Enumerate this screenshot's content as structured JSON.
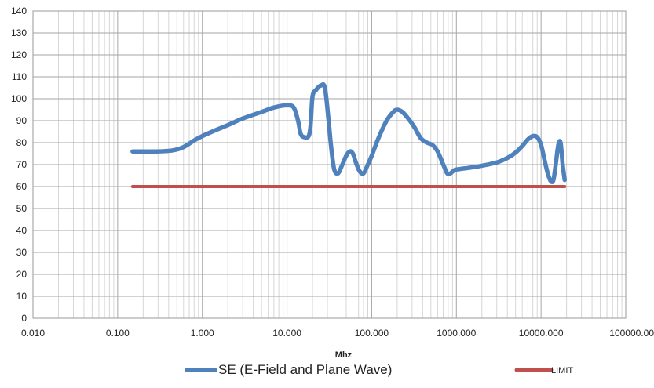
{
  "chart_data": {
    "type": "line",
    "title": "",
    "xlabel": "Mhz",
    "ylabel": "",
    "x_scale": "log",
    "xlim": [
      0.01,
      100000
    ],
    "ylim": [
      0,
      140
    ],
    "y_ticks": [
      0,
      10,
      20,
      30,
      40,
      50,
      60,
      70,
      80,
      90,
      100,
      110,
      120,
      130,
      140
    ],
    "y_tick_labels": [
      "0",
      "10",
      "20",
      "30",
      "40",
      "50",
      "60",
      "70",
      "80",
      "90",
      "100",
      "110",
      "120",
      "130",
      "140"
    ],
    "x_ticks": [
      0.01,
      0.1,
      1,
      10,
      100,
      1000,
      10000,
      100000
    ],
    "x_tick_labels": [
      "0.010",
      "0.100",
      "1.000",
      "10.000",
      "100.000",
      "1000.000",
      "10000.000",
      "100000.00"
    ],
    "grid": true,
    "legend_position": "bottom",
    "series": [
      {
        "name": "SE (E-Field and Plane Wave)",
        "color": "#4f81bd",
        "x": [
          0.15,
          0.2,
          0.3,
          0.45,
          0.6,
          0.8,
          1.0,
          1.5,
          2,
          3,
          5,
          7,
          10,
          12,
          13.5,
          14.5,
          16,
          18,
          19,
          20,
          22,
          25,
          28,
          31,
          33,
          36,
          40,
          45,
          50,
          55,
          60,
          65,
          72,
          80,
          90,
          100,
          120,
          150,
          180,
          200,
          230,
          270,
          320,
          380,
          450,
          520,
          600,
          700,
          780,
          850,
          950,
          1100,
          1400,
          2000,
          3000,
          4000,
          5000,
          6000,
          7000,
          8000,
          9000,
          10000,
          11000,
          12000,
          13000,
          14000,
          15000,
          16000,
          17000,
          18000,
          19000
        ],
        "y": [
          76,
          76,
          76,
          76.5,
          78,
          81,
          83,
          86,
          88,
          91,
          94,
          96,
          97,
          96,
          90,
          84,
          82.5,
          83,
          88,
          101,
          104,
          106,
          105,
          90,
          79,
          68,
          66,
          70,
          74,
          76,
          75,
          71,
          67,
          66,
          70,
          74,
          82,
          90,
          94,
          95,
          94,
          91,
          87,
          82,
          80,
          79,
          76,
          70,
          66,
          66,
          67.5,
          68,
          68.5,
          69.5,
          71,
          73,
          75.5,
          78.5,
          81.5,
          83,
          82.5,
          79,
          72,
          66,
          62.5,
          63,
          71,
          79,
          80,
          70,
          63
        ]
      },
      {
        "name": "LIMIT",
        "color": "#c0504d",
        "x": [
          0.15,
          19000
        ],
        "y": [
          60,
          60
        ]
      }
    ]
  }
}
